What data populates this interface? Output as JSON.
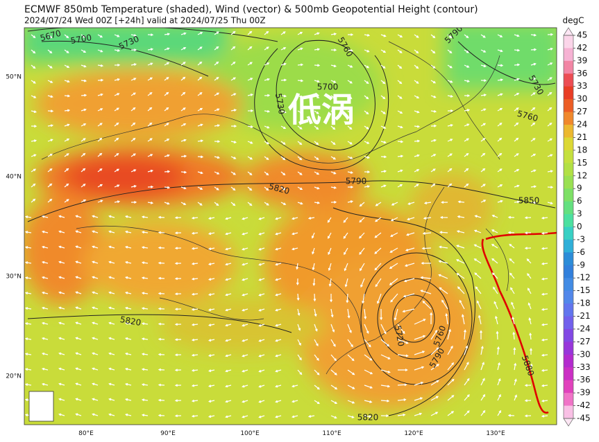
{
  "title": "ECMWF 850mb Temperature (shaded), Wind (vector) & 500mb Geopotential Height (contour)",
  "subtitle": "2024/07/24 Wed 00Z [+24h] valid at 2024/07/25 Thu 00Z",
  "annotation": "低涡",
  "latitude_labels": [
    "50°N",
    "40°N",
    "30°N",
    "20°N"
  ],
  "longitude_labels": [
    "80°E",
    "90°E",
    "100°E",
    "110°E",
    "120°E",
    "130°E"
  ],
  "contour_labels": [
    "5670",
    "5700",
    "5730",
    "5760",
    "5790",
    "5730",
    "5700",
    "5730",
    "5760",
    "5820",
    "5790",
    "5850",
    "5820",
    "5720",
    "5760",
    "5790",
    "5820",
    "5880"
  ],
  "colorbar": {
    "unit": "degC",
    "ticks": [
      45,
      42,
      39,
      36,
      33,
      30,
      27,
      24,
      21,
      18,
      15,
      12,
      9,
      6,
      3,
      0,
      -3,
      -6,
      -9,
      -12,
      -15,
      -18,
      -21,
      -24,
      -27,
      -30,
      -33,
      -36,
      -39,
      -42,
      -45
    ]
  }
}
